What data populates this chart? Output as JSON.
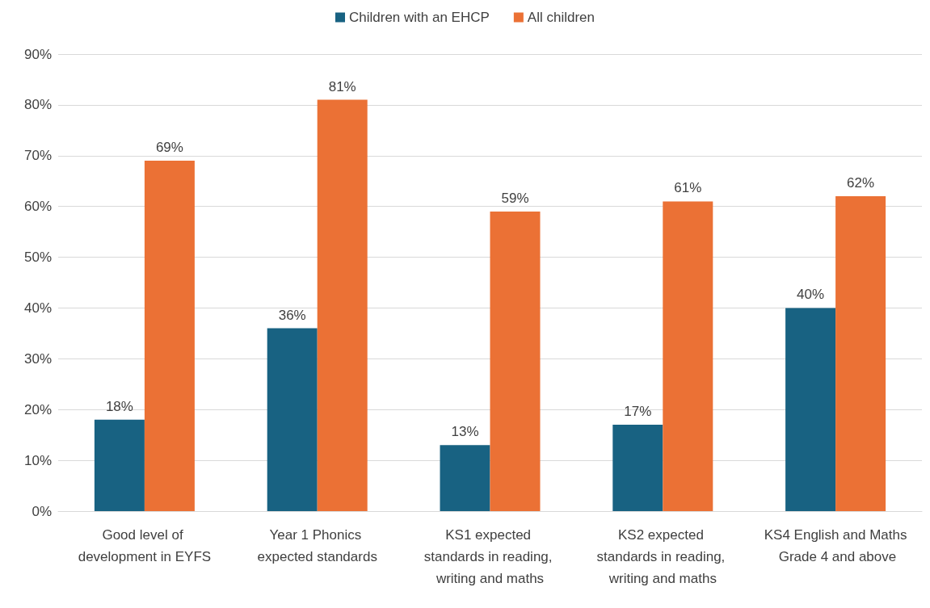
{
  "chart_data": {
    "type": "bar",
    "categories": [
      "Good level of development in EYFS",
      "Year 1 Phonics expected standards",
      "KS1 expected standards in reading, writing and maths",
      "KS2 expected standards in reading, writing and maths",
      "KS4 English and Maths Grade 4 and above"
    ],
    "series": [
      {
        "name": "Children with an EHCP",
        "color": "#186282",
        "values": [
          18,
          36,
          13,
          17,
          40
        ],
        "value_labels": [
          "18%",
          "36%",
          "13%",
          "17%",
          "40%"
        ]
      },
      {
        "name": "All children",
        "color": "#eb7135",
        "values": [
          69,
          81,
          59,
          61,
          62
        ],
        "value_labels": [
          "69%",
          "81%",
          "59%",
          "61%",
          "62%"
        ]
      }
    ],
    "ylim": [
      0,
      90
    ],
    "yticks": [
      {
        "value": 0,
        "label": "0%"
      },
      {
        "value": 10,
        "label": "10%"
      },
      {
        "value": 20,
        "label": "20%"
      },
      {
        "value": 30,
        "label": "30%"
      },
      {
        "value": 40,
        "label": "40%"
      },
      {
        "value": 50,
        "label": "50%"
      },
      {
        "value": 60,
        "label": "60%"
      },
      {
        "value": 70,
        "label": "70%"
      },
      {
        "value": 80,
        "label": "80%"
      },
      {
        "value": 90,
        "label": "90%"
      }
    ],
    "grid": "y",
    "legend": "top"
  }
}
